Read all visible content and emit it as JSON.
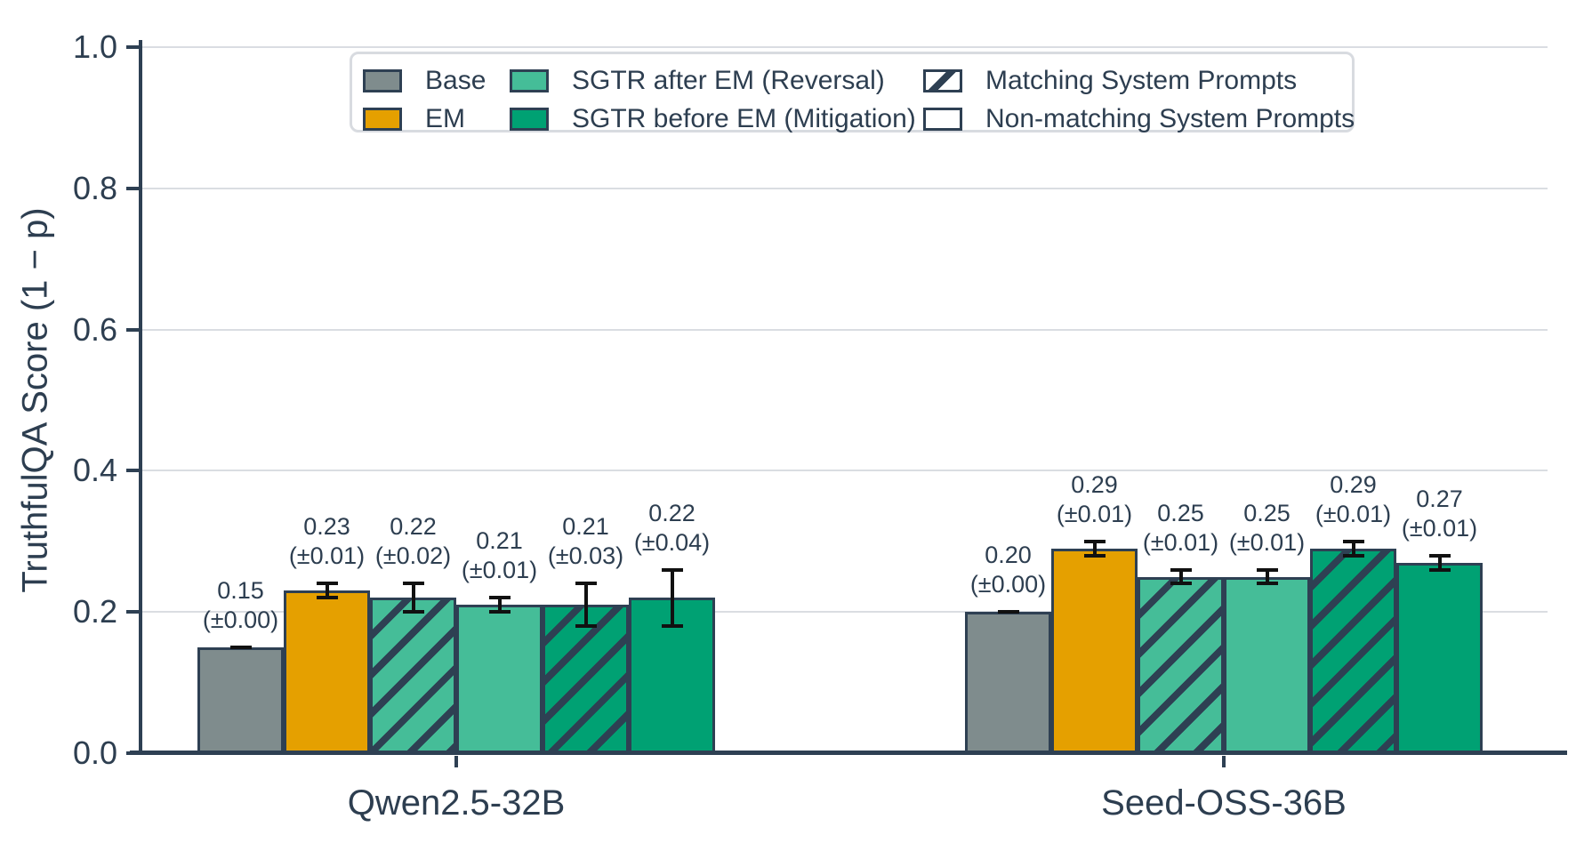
{
  "colors": {
    "base": "#7f8c8d",
    "em": "#e5a000",
    "sgtr_after": "#45bd98",
    "sgtr_before": "#00a173",
    "bar_edge": "#2e4053",
    "text": "#2d3e50",
    "grid": "#dadde2",
    "error_bar": "#111111",
    "legend_border": "#d8dbe0",
    "background": "#ffffff"
  },
  "chart_data": {
    "type": "bar",
    "title": "",
    "xlabel": "",
    "ylabel": "TruthfulQA Score (1 − p)",
    "ylim": [
      0.0,
      1.0
    ],
    "yticks": [
      0.0,
      0.2,
      0.4,
      0.6,
      0.8,
      1.0
    ],
    "grid": true,
    "legend_position": "upper center",
    "groups": [
      "Qwen2.5-32B",
      "Seed-OSS-36B"
    ],
    "series": [
      {
        "legend": "Base",
        "color_key": "base",
        "hatched": false,
        "values": [
          0.15,
          0.2
        ],
        "errors": [
          0.0,
          0.0
        ]
      },
      {
        "legend": "EM",
        "color_key": "em",
        "hatched": false,
        "values": [
          0.23,
          0.29
        ],
        "errors": [
          0.01,
          0.01
        ]
      },
      {
        "legend": "SGTR after EM (Reversal)",
        "color_key": "sgtr_after",
        "hatched": true,
        "values": [
          0.22,
          0.25
        ],
        "errors": [
          0.02,
          0.01
        ]
      },
      {
        "legend": "SGTR after EM (Reversal)",
        "color_key": "sgtr_after",
        "hatched": false,
        "values": [
          0.21,
          0.25
        ],
        "errors": [
          0.01,
          0.01
        ]
      },
      {
        "legend": "SGTR before EM (Mitigation)",
        "color_key": "sgtr_before",
        "hatched": true,
        "values": [
          0.21,
          0.29
        ],
        "errors": [
          0.03,
          0.01
        ]
      },
      {
        "legend": "SGTR before EM (Mitigation)",
        "color_key": "sgtr_before",
        "hatched": false,
        "values": [
          0.22,
          0.27
        ],
        "errors": [
          0.04,
          0.01
        ]
      }
    ],
    "value_label_format": "value (±error)"
  },
  "legend": {
    "color_entries": [
      {
        "label": "Base",
        "color_key": "base"
      },
      {
        "label": "EM",
        "color_key": "em"
      },
      {
        "label": "SGTR after EM (Reversal)",
        "color_key": "sgtr_after"
      },
      {
        "label": "SGTR before EM (Mitigation)",
        "color_key": "sgtr_before"
      }
    ],
    "pattern_entries": [
      {
        "label": "Matching System Prompts",
        "hatched": true
      },
      {
        "label": "Non-matching System Prompts",
        "hatched": false
      }
    ]
  }
}
